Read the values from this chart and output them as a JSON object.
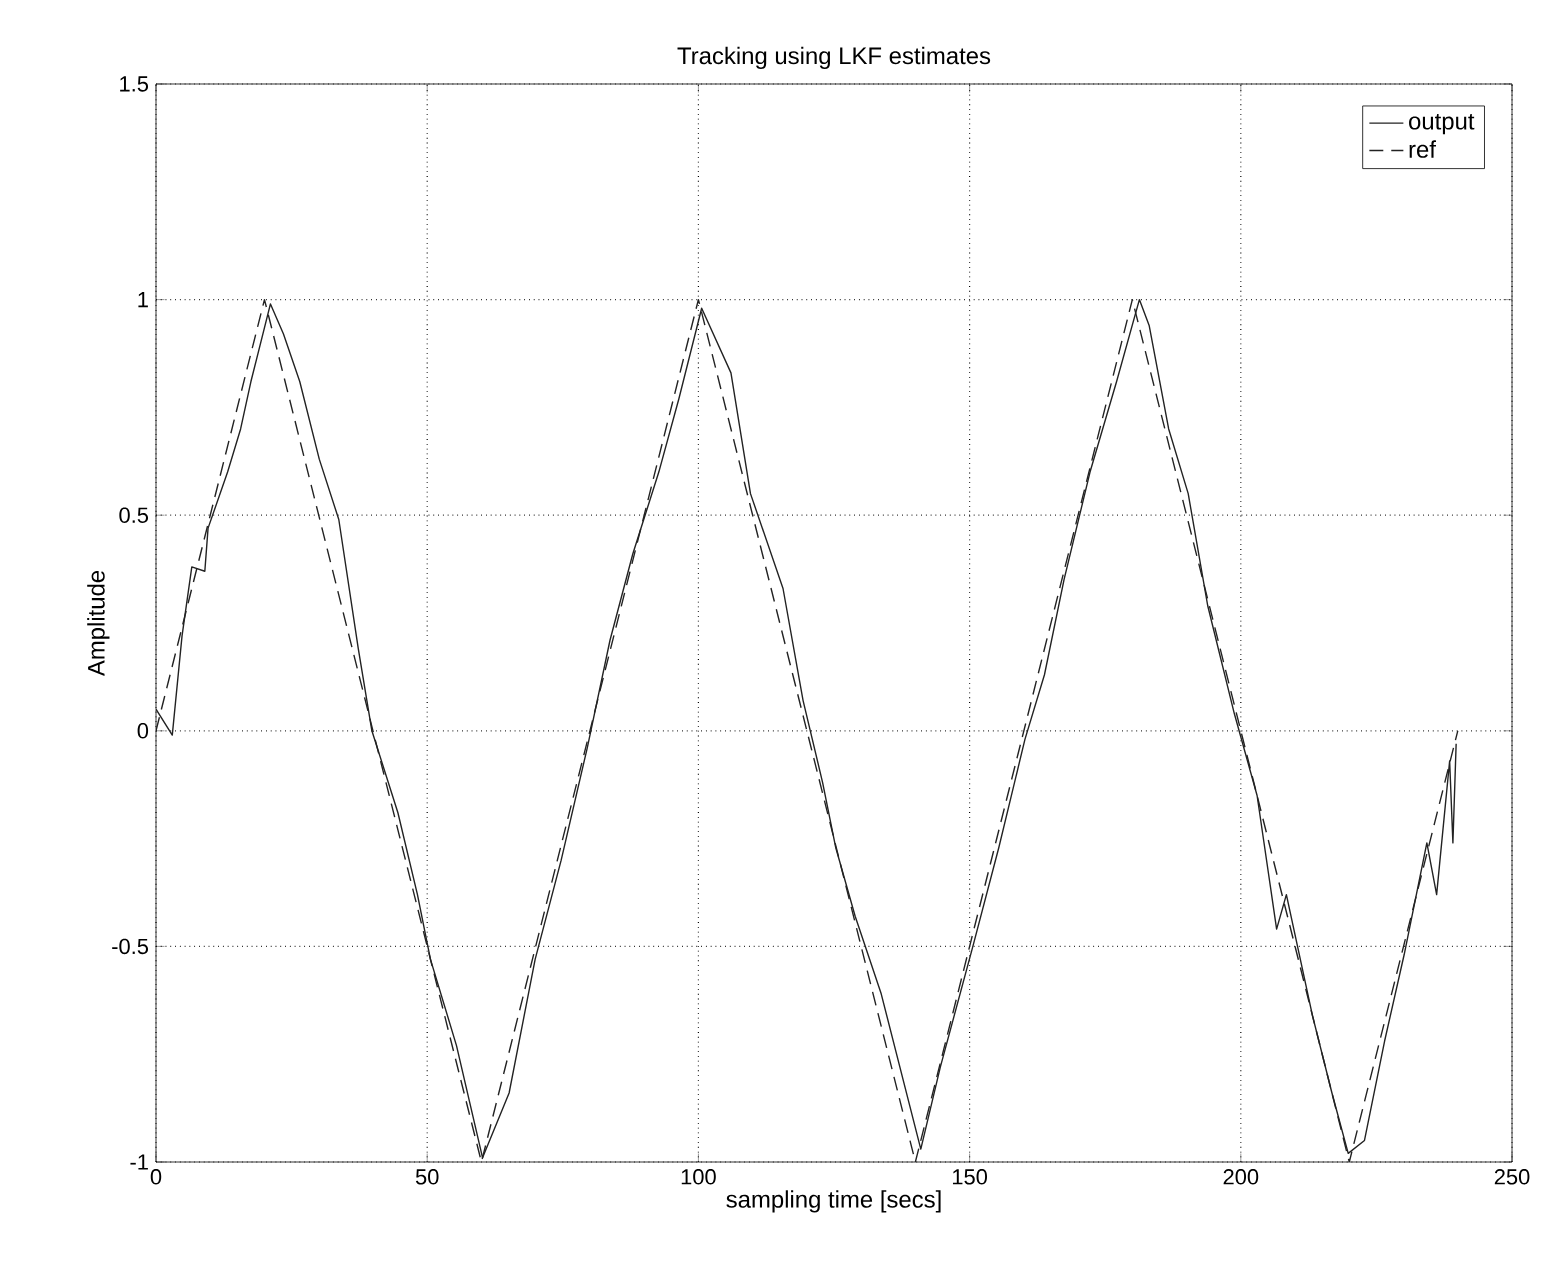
{
  "chart_data": {
    "type": "line",
    "title": "Tracking using LKF estimates",
    "xlabel": "sampling time [secs]",
    "ylabel": "Amplitude",
    "xlim": [
      0,
      250
    ],
    "ylim": [
      -1,
      1.5
    ],
    "xticks": [
      0,
      50,
      100,
      150,
      200,
      250
    ],
    "yticks": [
      -1,
      -0.5,
      0,
      0.5,
      1,
      1.5
    ],
    "grid": true,
    "legend": "top right",
    "series": [
      {
        "name": "output",
        "color": "#222222",
        "line_style": "solid",
        "x": [
          0,
          3.0,
          4.8,
          6.6,
          9.0,
          9.6,
          13.2,
          15.6,
          17.5,
          21.1,
          23.5,
          26.5,
          30.1,
          33.7,
          37.3,
          39.8,
          44.6,
          48.2,
          50.6,
          55.4,
          60.2,
          65.1,
          69.9,
          74.7,
          79.5,
          83.7,
          87.9,
          92.7,
          96.4,
          100.6,
          106,
          109.6,
          115.6,
          119.3,
          122.9,
          125.3,
          128.9,
          133.7,
          141,
          144.6,
          150.6,
          155.4,
          160.2,
          163.8,
          167.4,
          172.2,
          177.1,
          181.3,
          183.1,
          186.7,
          190.3,
          193.9,
          198.8,
          203,
          206.6,
          208.4,
          213.2,
          216.8,
          219.8,
          222.8,
          226.5,
          230.1,
          234.3,
          236.1,
          238.5,
          239.1,
          239.7
        ],
        "values": [
          0.05,
          -0.01,
          0.22,
          0.38,
          0.37,
          0.47,
          0.6,
          0.7,
          0.81,
          0.99,
          0.92,
          0.81,
          0.63,
          0.49,
          0.19,
          0.0,
          -0.19,
          -0.38,
          -0.53,
          -0.73,
          -0.99,
          -0.84,
          -0.53,
          -0.3,
          -0.04,
          0.21,
          0.41,
          0.6,
          0.77,
          0.98,
          0.83,
          0.55,
          0.33,
          0.07,
          -0.12,
          -0.27,
          -0.43,
          -0.61,
          -0.97,
          -0.78,
          -0.5,
          -0.27,
          -0.02,
          0.13,
          0.35,
          0.6,
          0.81,
          1.0,
          0.94,
          0.7,
          0.55,
          0.29,
          0.04,
          -0.15,
          -0.46,
          -0.38,
          -0.66,
          -0.84,
          -0.98,
          -0.95,
          -0.72,
          -0.52,
          -0.26,
          -0.38,
          -0.07,
          -0.26,
          -0.03
        ]
      },
      {
        "name": "ref",
        "color": "#222222",
        "line_style": "dashed",
        "x": [
          0,
          20,
          40,
          60,
          80,
          100,
          120,
          140,
          160,
          180,
          200,
          220,
          240
        ],
        "values": [
          0,
          1,
          0,
          -1,
          0,
          1,
          0,
          -1,
          0,
          1,
          0,
          -1,
          0
        ]
      }
    ]
  }
}
